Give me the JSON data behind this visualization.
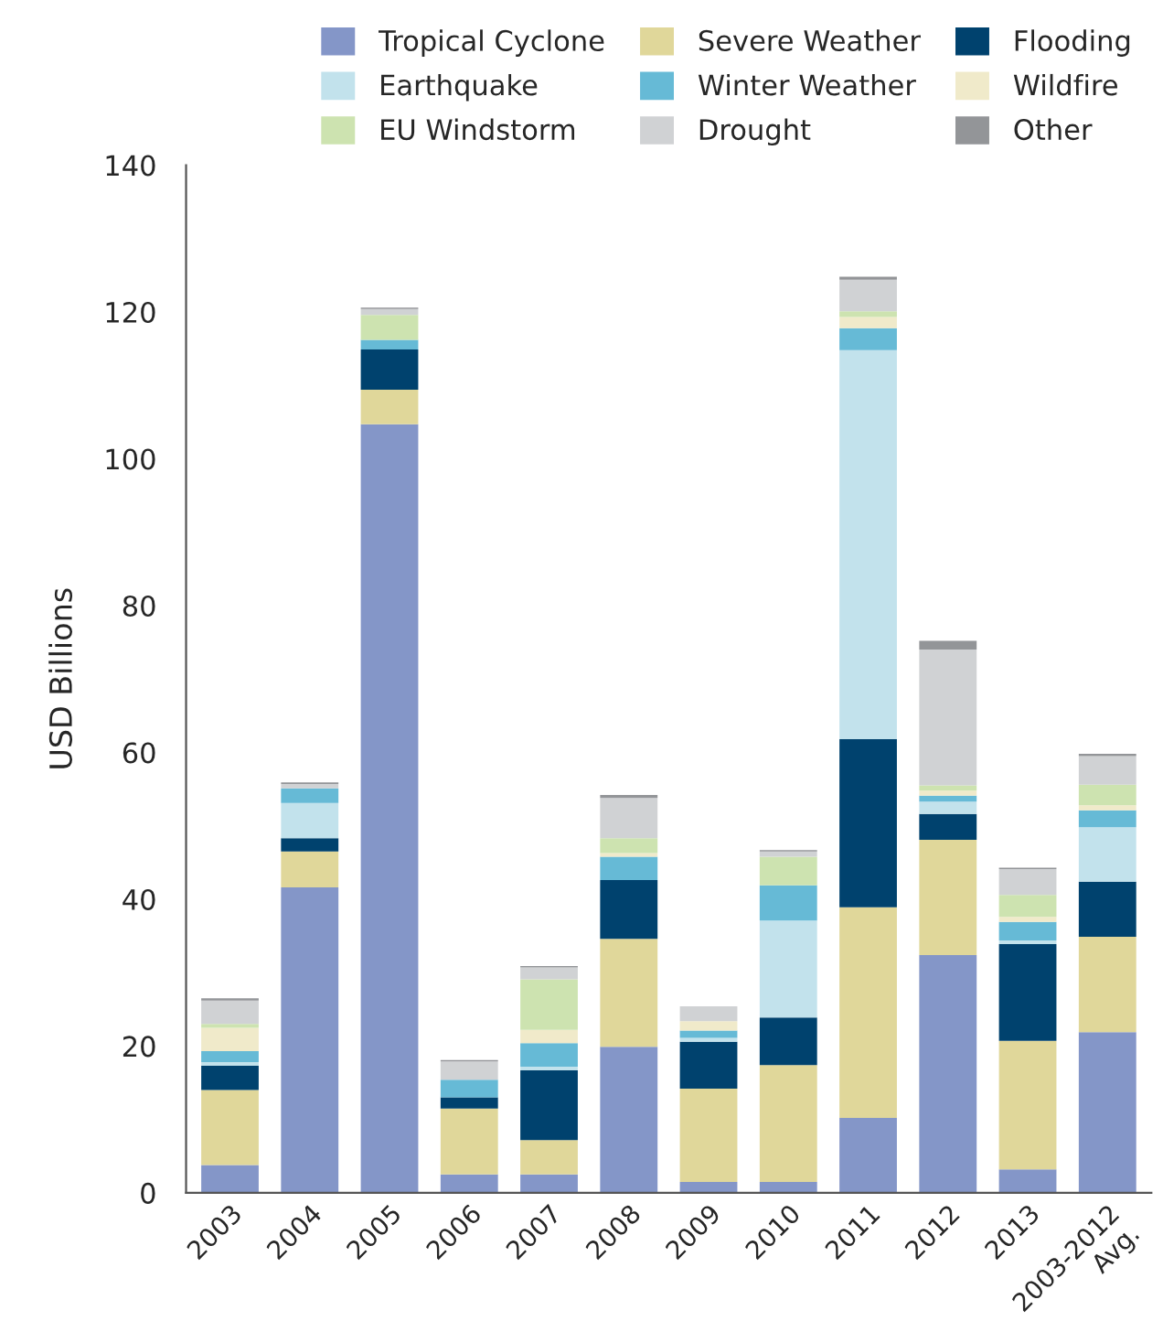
{
  "chart_data": {
    "type": "bar",
    "stacked": true,
    "ylabel": "USD Billions",
    "categories": [
      "2003",
      "2004",
      "2005",
      "2006",
      "2007",
      "2008",
      "2009",
      "2010",
      "2011",
      "2012",
      "2013",
      "2003-2012\nAvg."
    ],
    "series": [
      {
        "name": "Tropical Cyclone",
        "color": "#8496c8",
        "values": [
          3.8,
          41.6,
          104.7,
          2.5,
          2.5,
          19.9,
          1.5,
          1.5,
          10.2,
          32.4,
          3.2,
          21.9
        ]
      },
      {
        "name": "Severe Weather",
        "color": "#e0d79a",
        "values": [
          10.2,
          4.9,
          4.7,
          9.0,
          4.7,
          14.7,
          12.7,
          15.9,
          28.7,
          15.7,
          17.5,
          13.0
        ]
      },
      {
        "name": "Flooding",
        "color": "#00426e",
        "values": [
          3.3,
          1.8,
          5.5,
          1.5,
          9.5,
          8.0,
          6.4,
          6.5,
          22.9,
          3.5,
          13.2,
          7.5
        ]
      },
      {
        "name": "Earthquake",
        "color": "#c2e2ec",
        "values": [
          0.5,
          4.8,
          null,
          0,
          0.5,
          null,
          0.5,
          13.2,
          53.0,
          1.7,
          0.5,
          7.4
        ]
      },
      {
        "name": "Winter Weather",
        "color": "#66bad6",
        "values": [
          1.5,
          2.0,
          1.3,
          2.4,
          3.2,
          3.2,
          1.0,
          4.8,
          3.0,
          0.8,
          2.5,
          2.3
        ]
      },
      {
        "name": "Wildfire",
        "color": "#f0eaca",
        "values": [
          3.2,
          null,
          0,
          null,
          1.8,
          0.5,
          1.3,
          null,
          1.5,
          0.7,
          0.7,
          0.7
        ]
      },
      {
        "name": "EU Windstorm",
        "color": "#cde3b0",
        "values": [
          0.5,
          0,
          3.4,
          0,
          6.9,
          2.0,
          0,
          3.9,
          0.8,
          0.7,
          3.0,
          2.8
        ]
      },
      {
        "name": "Drought",
        "color": "#d0d2d4",
        "values": [
          3.2,
          0.6,
          0.8,
          2.5,
          1.6,
          5.5,
          2.0,
          0.7,
          4.3,
          18.5,
          3.5,
          3.9
        ]
      },
      {
        "name": "Other",
        "color": "#939598",
        "values": [
          0.3,
          0.2,
          0.2,
          0.2,
          0.2,
          0.4,
          0,
          0.2,
          0.4,
          1.2,
          0.2,
          0.3
        ]
      }
    ],
    "ylim": [
      0,
      140
    ],
    "yticks": [
      0,
      20,
      40,
      60,
      80,
      100,
      120,
      140
    ],
    "grid": false,
    "legend": "top right"
  }
}
